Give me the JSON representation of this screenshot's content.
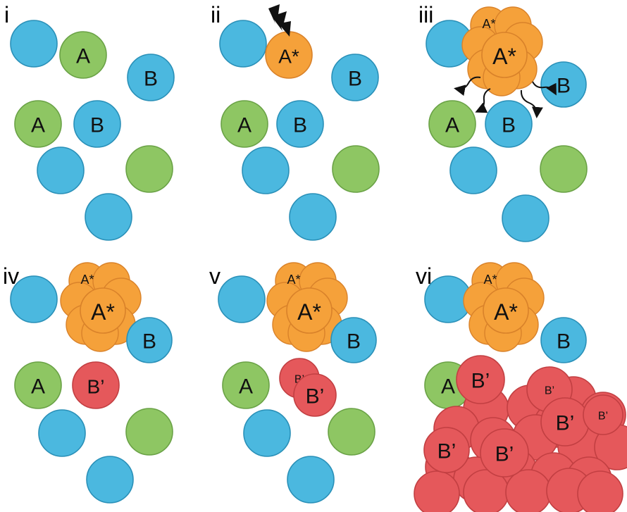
{
  "colors": {
    "blue": "#4bb8df",
    "blue_edge": "#2a90b8",
    "green": "#8ec663",
    "green_edge": "#6aa246",
    "orange": "#f5a13a",
    "orange_edge": "#d9822a",
    "red": "#e5585b",
    "red_edge": "#c23f42",
    "arrow": "#111111"
  },
  "panels": [
    {
      "label": "i"
    },
    {
      "label": "ii"
    },
    {
      "label": "iii"
    },
    {
      "label": "iv"
    },
    {
      "label": "v"
    },
    {
      "label": "vi"
    }
  ],
  "ball_labels": {
    "a": "A",
    "b": "B",
    "a_star": "A*",
    "b_prime": "B’"
  },
  "icons": {
    "lightning": "lightning-bolt-icon",
    "emission": "wavy-arrow-icon"
  }
}
